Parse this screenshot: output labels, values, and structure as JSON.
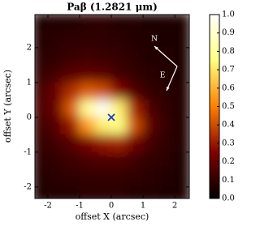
{
  "chart_data": {
    "type": "heatmap",
    "title": "Paβ (1.2821 μm)",
    "x_label": "offset X (arcsec)",
    "y_label": "offset Y (arcsec)",
    "x": [
      -2.25,
      -1.75,
      -1.25,
      -0.75,
      -0.25,
      0.25,
      0.75,
      1.25,
      1.75,
      2.25
    ],
    "y": [
      2.75,
      2.25,
      1.75,
      1.25,
      0.75,
      0.25,
      -0.25,
      -0.75,
      -1.25,
      -1.75,
      -2.25
    ],
    "values": [
      [
        0.06,
        0.07,
        0.07,
        0.08,
        0.08,
        0.07,
        0.07,
        0.06,
        0.06,
        0.05
      ],
      [
        0.07,
        0.08,
        0.09,
        0.09,
        0.09,
        0.08,
        0.07,
        0.07,
        0.06,
        0.06
      ],
      [
        0.08,
        0.09,
        0.11,
        0.12,
        0.11,
        0.1,
        0.08,
        0.07,
        0.07,
        0.06
      ],
      [
        0.1,
        0.13,
        0.17,
        0.19,
        0.17,
        0.13,
        0.1,
        0.08,
        0.07,
        0.06
      ],
      [
        0.13,
        0.21,
        0.34,
        0.43,
        0.4,
        0.26,
        0.15,
        0.1,
        0.08,
        0.07
      ],
      [
        0.15,
        0.21,
        0.43,
        0.8,
        0.98,
        0.72,
        0.32,
        0.15,
        0.09,
        0.07
      ],
      [
        0.12,
        0.17,
        0.3,
        0.55,
        0.72,
        0.76,
        0.4,
        0.18,
        0.1,
        0.07
      ],
      [
        0.1,
        0.13,
        0.17,
        0.24,
        0.3,
        0.32,
        0.22,
        0.13,
        0.09,
        0.07
      ],
      [
        0.08,
        0.1,
        0.12,
        0.14,
        0.15,
        0.15,
        0.12,
        0.1,
        0.08,
        0.06
      ],
      [
        0.07,
        0.08,
        0.09,
        0.1,
        0.1,
        0.1,
        0.09,
        0.08,
        0.07,
        0.06
      ],
      [
        0.06,
        0.07,
        0.07,
        0.08,
        0.08,
        0.08,
        0.07,
        0.07,
        0.06,
        0.05
      ]
    ],
    "colormap": "afmhot",
    "xlim": [
      -2.41,
      2.46
    ],
    "ylim": [
      -2.33,
      2.95
    ],
    "xticks": [
      -2,
      -1,
      0,
      1,
      2
    ],
    "yticks": [
      -2,
      -1,
      0,
      1,
      2
    ],
    "clim": [
      0,
      1
    ],
    "cticks": [
      {
        "value": 0,
        "label": "0.0"
      },
      0.1,
      0.2,
      0.3,
      0.4,
      0.5,
      0.6,
      0.7,
      0.8,
      0.9,
      {
        "value": 1,
        "label": "1.0"
      }
    ],
    "points": {
      "x": [
        0
      ],
      "y": [
        0
      ],
      "color": "#1f3fbf"
    },
    "annotations": [
      "N",
      "E"
    ]
  }
}
